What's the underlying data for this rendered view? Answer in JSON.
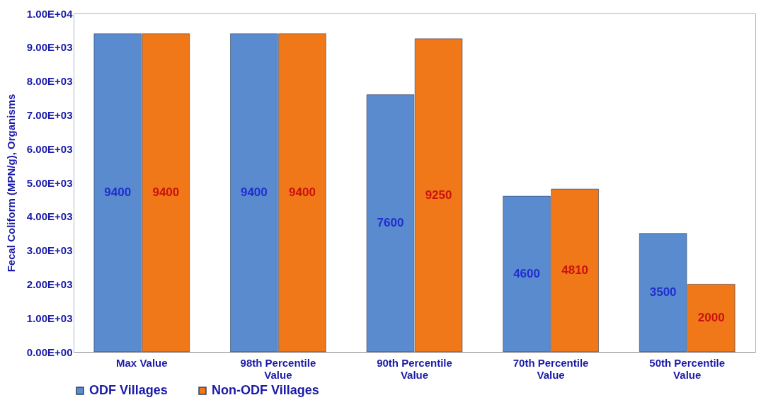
{
  "chart_data": {
    "type": "bar",
    "ylabel": "Fecal Coliform (MPN/g), Organisms",
    "categories": [
      "Max Value",
      "98th Percentile Value",
      "90th Percentile Value",
      "70th Percentile Value",
      "50th Percentile Value"
    ],
    "series": [
      {
        "name": "ODF Villages",
        "color": "#5b8bcf",
        "values": [
          9400,
          9400,
          7600,
          4600,
          3500
        ]
      },
      {
        "name": "Non-ODF Villages",
        "color": "#f07818",
        "values": [
          9400,
          9400,
          9250,
          4810,
          2000
        ]
      }
    ],
    "ylim": [
      0,
      10000
    ],
    "yticks": [
      {
        "value": 0,
        "label": "0.00E+00"
      },
      {
        "value": 1000,
        "label": "1.00E+03"
      },
      {
        "value": 2000,
        "label": "2.00E+03"
      },
      {
        "value": 3000,
        "label": "3.00E+03"
      },
      {
        "value": 4000,
        "label": "4.00E+03"
      },
      {
        "value": 5000,
        "label": "5.00E+03"
      },
      {
        "value": 6000,
        "label": "6.00E+03"
      },
      {
        "value": 7000,
        "label": "7.00E+03"
      },
      {
        "value": 8000,
        "label": "8.00E+03"
      },
      {
        "value": 9000,
        "label": "9.00E+03"
      },
      {
        "value": 10000,
        "label": "1.00E+04"
      }
    ],
    "data_labels": true,
    "grid": false,
    "legend": "bottom"
  }
}
